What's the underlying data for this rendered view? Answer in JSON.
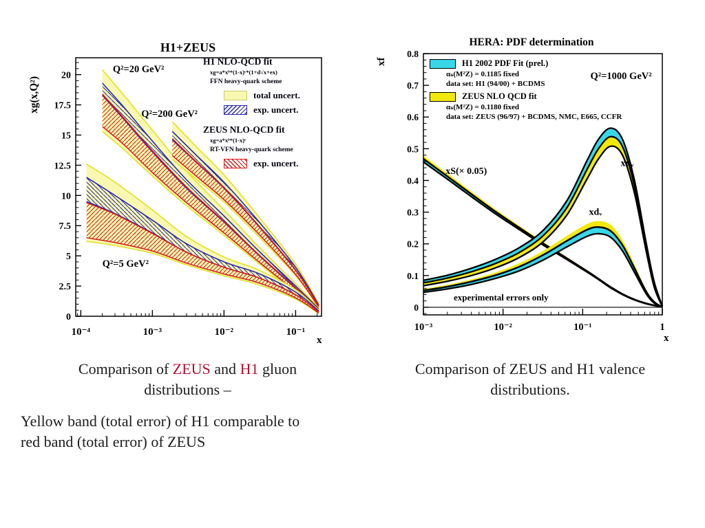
{
  "slide": {
    "captions": {
      "accent_color": "#b01030",
      "left_line1_parts": [
        {
          "text": "Comparison of ",
          "accent": false
        },
        {
          "text": "ZEUS",
          "accent": true
        },
        {
          "text": " and ",
          "accent": false
        },
        {
          "text": "H1",
          "accent": true
        },
        {
          "text": " gluon",
          "accent": false
        }
      ],
      "left_line2": "distributions –",
      "left_paragraph_line1": "Yellow band (total error) of H1 comparable to",
      "left_paragraph_line2": "red band (total error) of ZEUS",
      "right_line1": "Comparison of ZEUS and H1 valence",
      "right_line2": "distributions."
    }
  },
  "left_figure": {
    "legend": {
      "h1_header": "H1 NLO-QCD fit",
      "h1_formula": "xg=a*xᵇ*(1-x)ᶜ*(1+d√x+ex)",
      "h1_scheme": "FFN heavy-quark scheme",
      "total_label": "total uncert.",
      "h1_exp_label": "exp. uncert.",
      "zeus_header": "ZEUS NLO-QCD fit",
      "zeus_formula": "xg=a*xᵇ*(1-x)ᶜ",
      "zeus_scheme": "RT-VFN heavy-quark scheme",
      "zeus_exp_label": "exp. uncert."
    }
  },
  "right_figure": {
    "legend": {
      "h1_header": "H1 2002 PDF Fit (prel.)",
      "h1_alpha": "αₛ(M²Z) = 0.1185 fixed",
      "h1_data": "data set: H1 (94/00) + BCDMS",
      "zeus_header": "ZEUS NLO QCD fit",
      "zeus_alpha": "αₛ(M²Z) = 0.1180 fixed",
      "zeus_data": "data set: ZEUS (96/97) + BCDMS, NMC, E665, CCFR"
    }
  },
  "chart_data": [
    {
      "id": "gluon-chart",
      "type": "area",
      "title": "H1+ZEUS",
      "xlabel": "x",
      "ylabel": "xg(x,Q²)",
      "x_scale": "log",
      "xlim": [
        8.5e-05,
        0.23
      ],
      "ylim": [
        0,
        21.4
      ],
      "grid": false,
      "legend_position": "top-right-inside",
      "x_majors": [
        {
          "x": 0.0001,
          "label": "10⁻⁴"
        },
        {
          "x": 0.001,
          "label": "10⁻³"
        },
        {
          "x": 0.01,
          "label": "10⁻²"
        },
        {
          "x": 0.1,
          "label": "10⁻¹"
        }
      ],
      "y_majors": [
        {
          "value": 0,
          "label": "0"
        },
        {
          "value": 2.5,
          "label": "2.5"
        },
        {
          "value": 5,
          "label": "5"
        },
        {
          "value": 7.5,
          "label": "7.5"
        },
        {
          "value": 10,
          "label": "10"
        },
        {
          "value": 12.5,
          "label": "12.5"
        },
        {
          "value": 15,
          "label": "15"
        },
        {
          "value": 17.5,
          "label": "17.5"
        },
        {
          "value": 20,
          "label": "20"
        }
      ],
      "y_minor": 0.5,
      "colors": {
        "total_fill": "#f8f8b0",
        "total_edge": "#e2e232",
        "h1_edge": "#2828b0",
        "zeus_edge": "#d81818"
      },
      "bands": [
        {
          "label": "Q²=20 GeV²",
          "x": [
            0.0002,
            0.0004,
            0.001,
            0.003,
            0.01,
            0.03,
            0.1,
            0.21
          ],
          "total_hi": [
            20.4,
            18.3,
            15.4,
            12.0,
            8.8,
            5.8,
            2.7,
            0.7
          ],
          "h1_hi": [
            19.3,
            17.3,
            14.5,
            11.3,
            8.3,
            5.45,
            2.5,
            0.62
          ],
          "h1_lo": [
            18.3,
            16.3,
            13.6,
            10.6,
            7.8,
            5.1,
            2.3,
            0.55
          ],
          "zeus_hi": [
            18.4,
            16.4,
            13.7,
            10.7,
            7.85,
            5.15,
            2.35,
            0.57
          ],
          "zeus_lo": [
            15.7,
            14.2,
            11.9,
            9.4,
            6.9,
            4.55,
            2.05,
            0.46
          ],
          "total_lo": [
            15.3,
            13.8,
            11.6,
            9.15,
            6.7,
            4.4,
            1.95,
            0.42
          ]
        },
        {
          "label": "Q²=200 GeV²",
          "x": [
            0.0019,
            0.004,
            0.01,
            0.03,
            0.1,
            0.21
          ],
          "total_hi": [
            16.1,
            14.1,
            11.7,
            8.3,
            4.3,
            1.05
          ],
          "h1_hi": [
            15.3,
            13.4,
            11.1,
            7.9,
            4.05,
            0.95
          ],
          "h1_lo": [
            14.6,
            12.8,
            10.6,
            7.5,
            3.8,
            0.87
          ],
          "zeus_hi": [
            14.7,
            12.85,
            10.65,
            7.55,
            3.85,
            0.89
          ],
          "zeus_lo": [
            13.3,
            11.65,
            9.65,
            6.85,
            3.45,
            0.76
          ],
          "total_lo": [
            13.0,
            11.4,
            9.45,
            6.65,
            3.35,
            0.7
          ]
        },
        {
          "label": "Q²=5 GeV²",
          "x": [
            0.00012,
            0.0003,
            0.001,
            0.003,
            0.01,
            0.03,
            0.1,
            0.21
          ],
          "total_hi": [
            12.6,
            11.1,
            8.8,
            6.6,
            4.9,
            3.85,
            2.2,
            0.5
          ],
          "h1_hi": [
            11.5,
            10.0,
            7.95,
            6.0,
            4.5,
            3.55,
            2.0,
            0.44
          ],
          "h1_lo": [
            9.5,
            8.5,
            6.9,
            5.3,
            4.05,
            3.2,
            1.78,
            0.36
          ],
          "zeus_hi": [
            9.4,
            8.45,
            6.85,
            5.3,
            4.05,
            3.2,
            1.78,
            0.37
          ],
          "zeus_lo": [
            6.5,
            6.1,
            5.4,
            4.4,
            3.5,
            2.78,
            1.52,
            0.27
          ],
          "total_lo": [
            6.2,
            5.85,
            5.2,
            4.25,
            3.35,
            2.62,
            1.42,
            0.23
          ]
        }
      ],
      "annotations": [
        {
          "text": "Q²=20 GeV²",
          "x": 0.00028,
          "y": 20.2,
          "size": 14.5
        },
        {
          "text": "Q²=200 GeV²",
          "x": 0.0007,
          "y": 16.5,
          "size": 14.5
        },
        {
          "text": "Q²=5 GeV²",
          "x": 0.0002,
          "y": 4.1,
          "size": 14.5
        }
      ]
    },
    {
      "id": "valence-chart",
      "type": "area",
      "title": "HERA: PDF determination",
      "xlabel": "x",
      "ylabel": "xf",
      "x_scale": "log",
      "xlim": [
        0.001,
        1.0
      ],
      "ylim": [
        -0.024,
        0.8
      ],
      "grid": false,
      "zero_line": true,
      "legend_position": "top-left-inside",
      "x_majors": [
        {
          "x": 0.001,
          "label": "10⁻³"
        },
        {
          "x": 0.01,
          "label": "10⁻²"
        },
        {
          "x": 0.1,
          "label": "10⁻¹"
        },
        {
          "x": 1,
          "label": "1"
        }
      ],
      "y_majors": [
        {
          "value": 0,
          "label": "0"
        },
        {
          "value": 0.1,
          "label": "0.1"
        },
        {
          "value": 0.2,
          "label": "0.2"
        },
        {
          "value": 0.3,
          "label": "0.3"
        },
        {
          "value": 0.4,
          "label": "0.4"
        },
        {
          "value": 0.5,
          "label": "0.5"
        },
        {
          "value": 0.6,
          "label": "0.6"
        },
        {
          "value": 0.7,
          "label": "0.7"
        },
        {
          "value": 0.8,
          "label": "0.8"
        }
      ],
      "y_minor": 0.02,
      "colors": {
        "h1_fill": "#38d6e8",
        "zeus_fill": "#f2e80c",
        "outline": "#000000"
      },
      "curves": [
        {
          "name": "xS",
          "x": [
            0.001,
            0.002,
            0.004,
            0.008,
            0.016,
            0.032,
            0.063,
            0.112,
            0.158,
            0.224,
            0.316,
            0.447,
            0.63,
            0.79,
            1.0
          ],
          "zeus_hi": [
            0.478,
            0.422,
            0.365,
            0.309,
            0.257,
            0.206,
            0.159,
            0.118,
            0.093,
            0.066,
            0.044,
            0.026,
            0.013,
            0.007,
            0.002
          ],
          "zeus_lo": [
            0.468,
            0.413,
            0.357,
            0.302,
            0.251,
            0.201,
            0.155,
            0.115,
            0.09,
            0.064,
            0.042,
            0.0245,
            0.012,
            0.0062,
            0.0015
          ],
          "h1_hi": [
            0.468,
            0.413,
            0.357,
            0.302,
            0.251,
            0.201,
            0.155,
            0.115,
            0.09,
            0.064,
            0.042,
            0.0245,
            0.012,
            0.0062,
            0.0015
          ],
          "h1_lo": [
            0.458,
            0.404,
            0.349,
            0.295,
            0.245,
            0.196,
            0.151,
            0.112,
            0.0875,
            0.0615,
            0.04,
            0.023,
            0.011,
            0.0055,
            0.001
          ]
        },
        {
          "name": "xdv",
          "x": [
            0.001,
            0.002,
            0.004,
            0.008,
            0.016,
            0.032,
            0.063,
            0.112,
            0.158,
            0.224,
            0.316,
            0.447,
            0.63,
            0.79,
            1.0
          ],
          "zeus_hi": [
            0.058,
            0.071,
            0.088,
            0.11,
            0.139,
            0.178,
            0.225,
            0.262,
            0.272,
            0.26,
            0.212,
            0.135,
            0.055,
            0.02,
            0.001
          ],
          "zeus_lo": [
            0.053,
            0.065,
            0.081,
            0.101,
            0.128,
            0.165,
            0.209,
            0.244,
            0.253,
            0.241,
            0.196,
            0.123,
            0.049,
            0.017,
            0.0007
          ],
          "h1_hi": [
            0.053,
            0.065,
            0.081,
            0.101,
            0.128,
            0.165,
            0.209,
            0.244,
            0.253,
            0.241,
            0.196,
            0.123,
            0.049,
            0.017,
            0.0007
          ],
          "h1_lo": [
            0.047,
            0.058,
            0.072,
            0.091,
            0.115,
            0.149,
            0.19,
            0.223,
            0.232,
            0.221,
            0.178,
            0.11,
            0.042,
            0.013,
            0.0004
          ]
        },
        {
          "name": "xuv",
          "x": [
            0.001,
            0.002,
            0.004,
            0.008,
            0.016,
            0.032,
            0.063,
            0.112,
            0.158,
            0.224,
            0.316,
            0.447,
            0.63,
            0.79,
            1.0
          ],
          "h1_hi": [
            0.085,
            0.101,
            0.123,
            0.151,
            0.188,
            0.243,
            0.335,
            0.46,
            0.53,
            0.565,
            0.53,
            0.4,
            0.2,
            0.08,
            0.004
          ],
          "h1_lo": [
            0.077,
            0.092,
            0.112,
            0.138,
            0.173,
            0.226,
            0.313,
            0.432,
            0.5,
            0.538,
            0.507,
            0.382,
            0.188,
            0.072,
            0.003
          ],
          "zeus_hi": [
            0.077,
            0.092,
            0.112,
            0.138,
            0.173,
            0.226,
            0.313,
            0.432,
            0.5,
            0.538,
            0.507,
            0.382,
            0.188,
            0.072,
            0.003
          ],
          "zeus_lo": [
            0.068,
            0.082,
            0.1,
            0.124,
            0.157,
            0.207,
            0.29,
            0.402,
            0.468,
            0.508,
            0.48,
            0.36,
            0.175,
            0.064,
            0.002
          ]
        }
      ],
      "annotations": [
        {
          "text": "Q²=1000 GeV²",
          "x": 0.125,
          "y": 0.72,
          "size": 14.5
        },
        {
          "text": "xS(× 0.05)",
          "x": 0.0019,
          "y": 0.42,
          "size": 14
        },
        {
          "text": "xuᵥ",
          "x": 0.3,
          "y": 0.445,
          "size": 14
        },
        {
          "text": "xdᵥ",
          "x": 0.12,
          "y": 0.292,
          "size": 14
        },
        {
          "text": "experimental errors only",
          "x": 0.0024,
          "y": 0.022,
          "size": 13
        }
      ]
    }
  ]
}
